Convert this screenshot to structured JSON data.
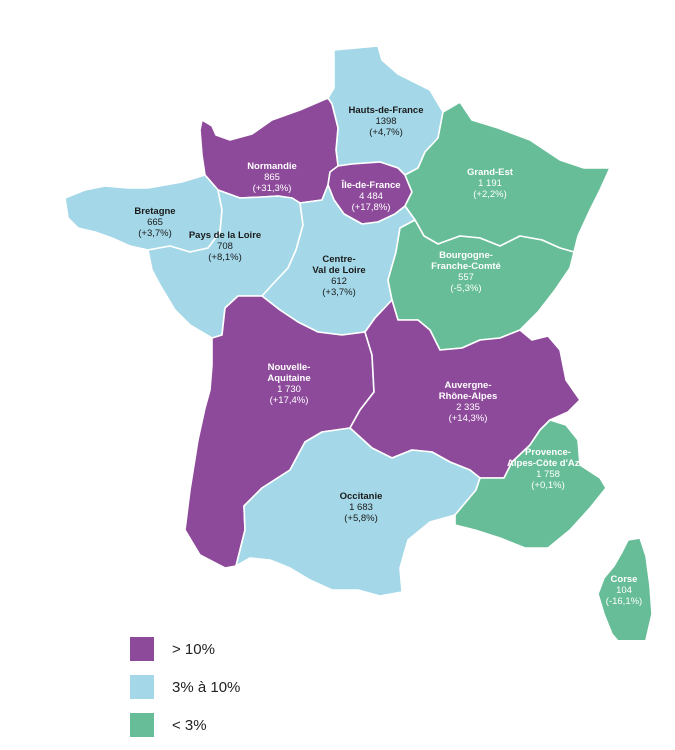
{
  "colors": {
    "high": "#8e4a9a",
    "mid": "#a4d8e8",
    "low": "#66bd97"
  },
  "regions": [
    {
      "id": "hauts-de-france",
      "name_lines": [
        "Hauts-de-France"
      ],
      "value": "1398",
      "change": "(+4,7%)",
      "class": "mid"
    },
    {
      "id": "normandie",
      "name_lines": [
        "Normandie"
      ],
      "value": "865",
      "change": "(+31,3%)",
      "class": "high"
    },
    {
      "id": "ile-de-france",
      "name_lines": [
        "Île-de-France"
      ],
      "value": "4 484",
      "change": "(+17,8%)",
      "class": "high"
    },
    {
      "id": "grand-est",
      "name_lines": [
        "Grand-Est"
      ],
      "value": "1 191",
      "change": "(+2,2%)",
      "class": "low"
    },
    {
      "id": "bretagne",
      "name_lines": [
        "Bretagne"
      ],
      "value": "665",
      "change": "(+3,7%)",
      "class": "mid"
    },
    {
      "id": "pays-de-la-loire",
      "name_lines": [
        "Pays de la Loire"
      ],
      "value": "708",
      "change": "(+8,1%)",
      "class": "mid"
    },
    {
      "id": "centre-val-de-loire",
      "name_lines": [
        "Centre-",
        "Val de Loire"
      ],
      "value": "612",
      "change": "(+3,7%)",
      "class": "mid"
    },
    {
      "id": "bourgogne-franche-comte",
      "name_lines": [
        "Bourgogne-",
        "Franche-Comté"
      ],
      "value": "557",
      "change": "(-5,3%)",
      "class": "low"
    },
    {
      "id": "nouvelle-aquitaine",
      "name_lines": [
        "Nouvelle-",
        "Aquitaine"
      ],
      "value": "1 730",
      "change": "(+17,4%)",
      "class": "high"
    },
    {
      "id": "auvergne-rhone-alpes",
      "name_lines": [
        "Auvergne-",
        "Rhône-Alpes"
      ],
      "value": "2 335",
      "change": "(+14,3%)",
      "class": "high"
    },
    {
      "id": "occitanie",
      "name_lines": [
        "Occitanie"
      ],
      "value": "1 683",
      "change": "(+5,8%)",
      "class": "mid"
    },
    {
      "id": "provence-alpes-cote-dazur",
      "name_lines": [
        "Provence-",
        "Alpes-Côte d'Azur"
      ],
      "value": "1 758",
      "change": "(+0,1%)",
      "class": "low"
    },
    {
      "id": "corse",
      "name_lines": [
        "Corse"
      ],
      "value": "104",
      "change": "(-16,1%)",
      "class": "low"
    }
  ],
  "legend": [
    {
      "label": "> 10%",
      "class": "high"
    },
    {
      "label": "3% à 10%",
      "class": "mid"
    },
    {
      "label": "< 3%",
      "class": "low"
    }
  ]
}
